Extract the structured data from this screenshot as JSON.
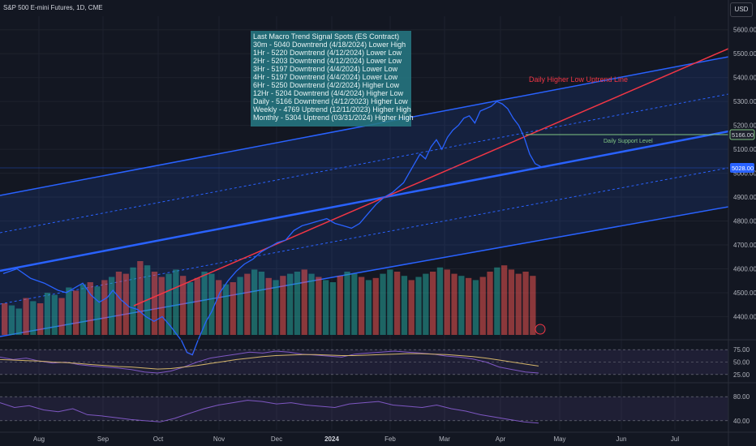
{
  "header": {
    "symbol_line": "S&P 500 E-mini Futures, 1D, CME"
  },
  "currency": "USD",
  "signal_box": {
    "title": "Last Macro Trend Signal Spots (ES Contract)",
    "lines": [
      "30m - 5040 Downtrend (4/18/2024) Lower High",
      "1Hr - 5220 Downtrend (4/12/2024) Lower Low",
      "2Hr - 5203 Downtrend (4/12/2024) Lower Low",
      "3Hr - 5197 Downtrend (4/4/2024) Lower Low",
      "4Hr - 5197 Downtrend (4/4/2024) Lower Low",
      "6Hr - 5250 Downtrend (4/2/2024) Higher Low",
      "12Hr - 5204 Downtrend (4/4/2024) Higher Low",
      "Daily - 5166 Downtrend (4/12/2023) Higher Low",
      "Weekly - 4769 Uptrend (12/11/2023) Higher High",
      "Monthly - 5304 Uptrend (03/31/2024) Higher High"
    ]
  },
  "annotations": {
    "uptrend_line": "Daily Higher Low Uptrend Line",
    "support_level": "Daily Support Level"
  },
  "colors": {
    "background": "#131722",
    "price": "#2962ff",
    "channel": "#2962ff",
    "uptrend": "#f23645",
    "support": "#81c784",
    "volume_up": "#26a69a",
    "volume_down": "#ef5350",
    "rsi": "#7e57c2",
    "rsi_ma": "#d4b56a"
  },
  "chart_data": {
    "type": "line",
    "title": "S&P 500 E-mini Futures, 1D, CME",
    "x_labels": [
      "Aug",
      "Sep",
      "Oct",
      "Nov",
      "Dec",
      "2024",
      "Feb",
      "Mar",
      "Apr",
      "May",
      "Jun",
      "Jul"
    ],
    "y_ticks": [
      4400,
      4500,
      4600,
      4700,
      4800,
      4900,
      5000,
      5100,
      5200,
      5300,
      5400,
      5500,
      5600
    ],
    "ylim": [
      4320,
      5650
    ],
    "price_tags": [
      "5166.00",
      "5028.00"
    ],
    "support_level": 5166,
    "series": [
      {
        "x": [
          0,
          5,
          10,
          15,
          20,
          23,
          26,
          29,
          32,
          35,
          38,
          40,
          43,
          46,
          49,
          52,
          55,
          58,
          61,
          63,
          65,
          67,
          69,
          71,
          74,
          76,
          79,
          82,
          85,
          88,
          91,
          94,
          97,
          100,
          103,
          106,
          109,
          112,
          115,
          118,
          121,
          124,
          127,
          130,
          133,
          136,
          139,
          142,
          144,
          146,
          148,
          150,
          152,
          154,
          156,
          158,
          160,
          162,
          164,
          166,
          168,
          170,
          172,
          174,
          176,
          178,
          180,
          182,
          184,
          186,
          188,
          190,
          192,
          194,
          196
        ],
        "values": [
          4580,
          4600,
          4560,
          4540,
          4510,
          4500,
          4520,
          4540,
          4490,
          4460,
          4480,
          4510,
          4470,
          4440,
          4430,
          4400,
          4380,
          4400,
          4360,
          4330,
          4300,
          4250,
          4240,
          4300,
          4380,
          4420,
          4500,
          4550,
          4590,
          4620,
          4640,
          4670,
          4690,
          4710,
          4720,
          4760,
          4780,
          4790,
          4800,
          4810,
          4790,
          4780,
          4770,
          4790,
          4830,
          4870,
          4900,
          4920,
          4940,
          4960,
          5000,
          5040,
          5080,
          5060,
          5110,
          5140,
          5100,
          5150,
          5180,
          5200,
          5230,
          5240,
          5210,
          5260,
          5270,
          5280,
          5300,
          5290,
          5270,
          5230,
          5200,
          5150,
          5080,
          5040,
          5028
        ]
      }
    ],
    "volume": {
      "values": [
        30,
        28,
        25,
        35,
        32,
        30,
        40,
        38,
        35,
        45,
        42,
        48,
        50,
        46,
        52,
        55,
        60,
        58,
        64,
        70,
        66,
        60,
        55,
        58,
        62,
        56,
        50,
        54,
        60,
        58,
        52,
        48,
        50,
        55,
        58,
        62,
        60,
        54,
        52,
        56,
        58,
        60,
        62,
        58,
        55,
        52,
        50,
        56,
        60,
        58,
        55,
        52,
        54,
        58,
        62,
        60,
        56,
        52,
        55,
        58,
        60,
        64,
        62,
        58,
        56,
        54,
        52,
        55,
        60,
        64,
        66,
        62,
        58,
        60,
        56
      ],
      "colors": [
        "d",
        "u",
        "u",
        "d",
        "u",
        "d",
        "u",
        "u",
        "d",
        "u",
        "d",
        "u",
        "d",
        "u",
        "d",
        "u",
        "d",
        "d",
        "u",
        "d",
        "u",
        "d",
        "d",
        "u",
        "u",
        "d",
        "u",
        "d",
        "u",
        "u",
        "d",
        "u",
        "d",
        "u",
        "d",
        "u",
        "u",
        "d",
        "u",
        "d",
        "u",
        "u",
        "d",
        "u",
        "d",
        "u",
        "u",
        "d",
        "u",
        "u",
        "d",
        "u",
        "d",
        "u",
        "u",
        "d",
        "u",
        "d",
        "u",
        "u",
        "d",
        "u",
        "d",
        "d",
        "u",
        "d",
        "u",
        "d",
        "d",
        "u",
        "d",
        "d",
        "d",
        "d",
        "d"
      ]
    },
    "rsi1": {
      "ticks": [
        75,
        50,
        25
      ],
      "rsi": [
        60,
        55,
        58,
        52,
        48,
        50,
        45,
        42,
        40,
        38,
        35,
        30,
        28,
        32,
        40,
        50,
        58,
        62,
        66,
        70,
        68,
        72,
        70,
        66,
        64,
        62,
        60,
        66,
        68,
        70,
        72,
        70,
        68,
        66,
        62,
        60,
        56,
        50,
        40,
        35,
        30,
        28
      ],
      "ma": [
        55,
        54,
        53,
        52,
        50,
        49,
        47,
        45,
        43,
        41,
        40,
        38,
        36,
        37,
        40,
        43,
        47,
        51,
        55,
        58,
        61,
        63,
        64,
        65,
        65,
        64,
        63,
        63,
        64,
        65,
        66,
        67,
        67,
        66,
        65,
        63,
        61,
        58,
        54,
        50,
        46,
        42
      ]
    },
    "rsi2": {
      "ticks": [
        80,
        40
      ],
      "values": [
        70,
        62,
        65,
        58,
        55,
        60,
        50,
        48,
        45,
        42,
        40,
        38,
        44,
        52,
        60,
        66,
        70,
        74,
        72,
        68,
        70,
        66,
        64,
        62,
        68,
        70,
        72,
        66,
        64,
        62,
        66,
        60,
        56,
        50,
        46,
        42,
        38,
        36
      ]
    }
  }
}
